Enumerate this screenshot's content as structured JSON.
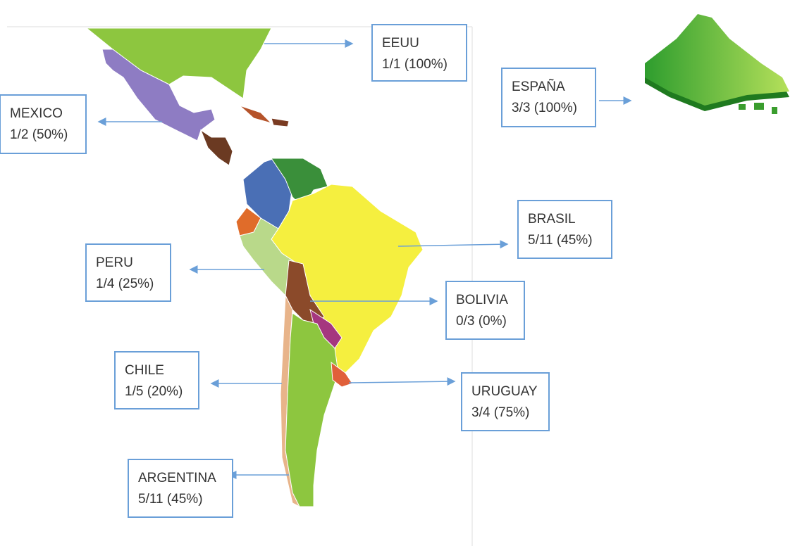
{
  "labels": [
    {
      "country": "EEUU",
      "stat": "1/1 (100%)"
    },
    {
      "country": "MEXICO",
      "stat": "1/2 (50%)"
    },
    {
      "country": "ESPAÑA",
      "stat": "3/3 (100%)"
    },
    {
      "country": "BRASIL",
      "stat": "5/11 (45%)"
    },
    {
      "country": "PERU",
      "stat": "1/4 (25%)"
    },
    {
      "country": "BOLIVIA",
      "stat": "0/3 (0%)"
    },
    {
      "country": "CHILE",
      "stat": "1/5 (20%)"
    },
    {
      "country": "URUGUAY",
      "stat": "3/4 (75%)"
    },
    {
      "country": "ARGENTINA",
      "stat": "5/11 (45%)"
    }
  ]
}
